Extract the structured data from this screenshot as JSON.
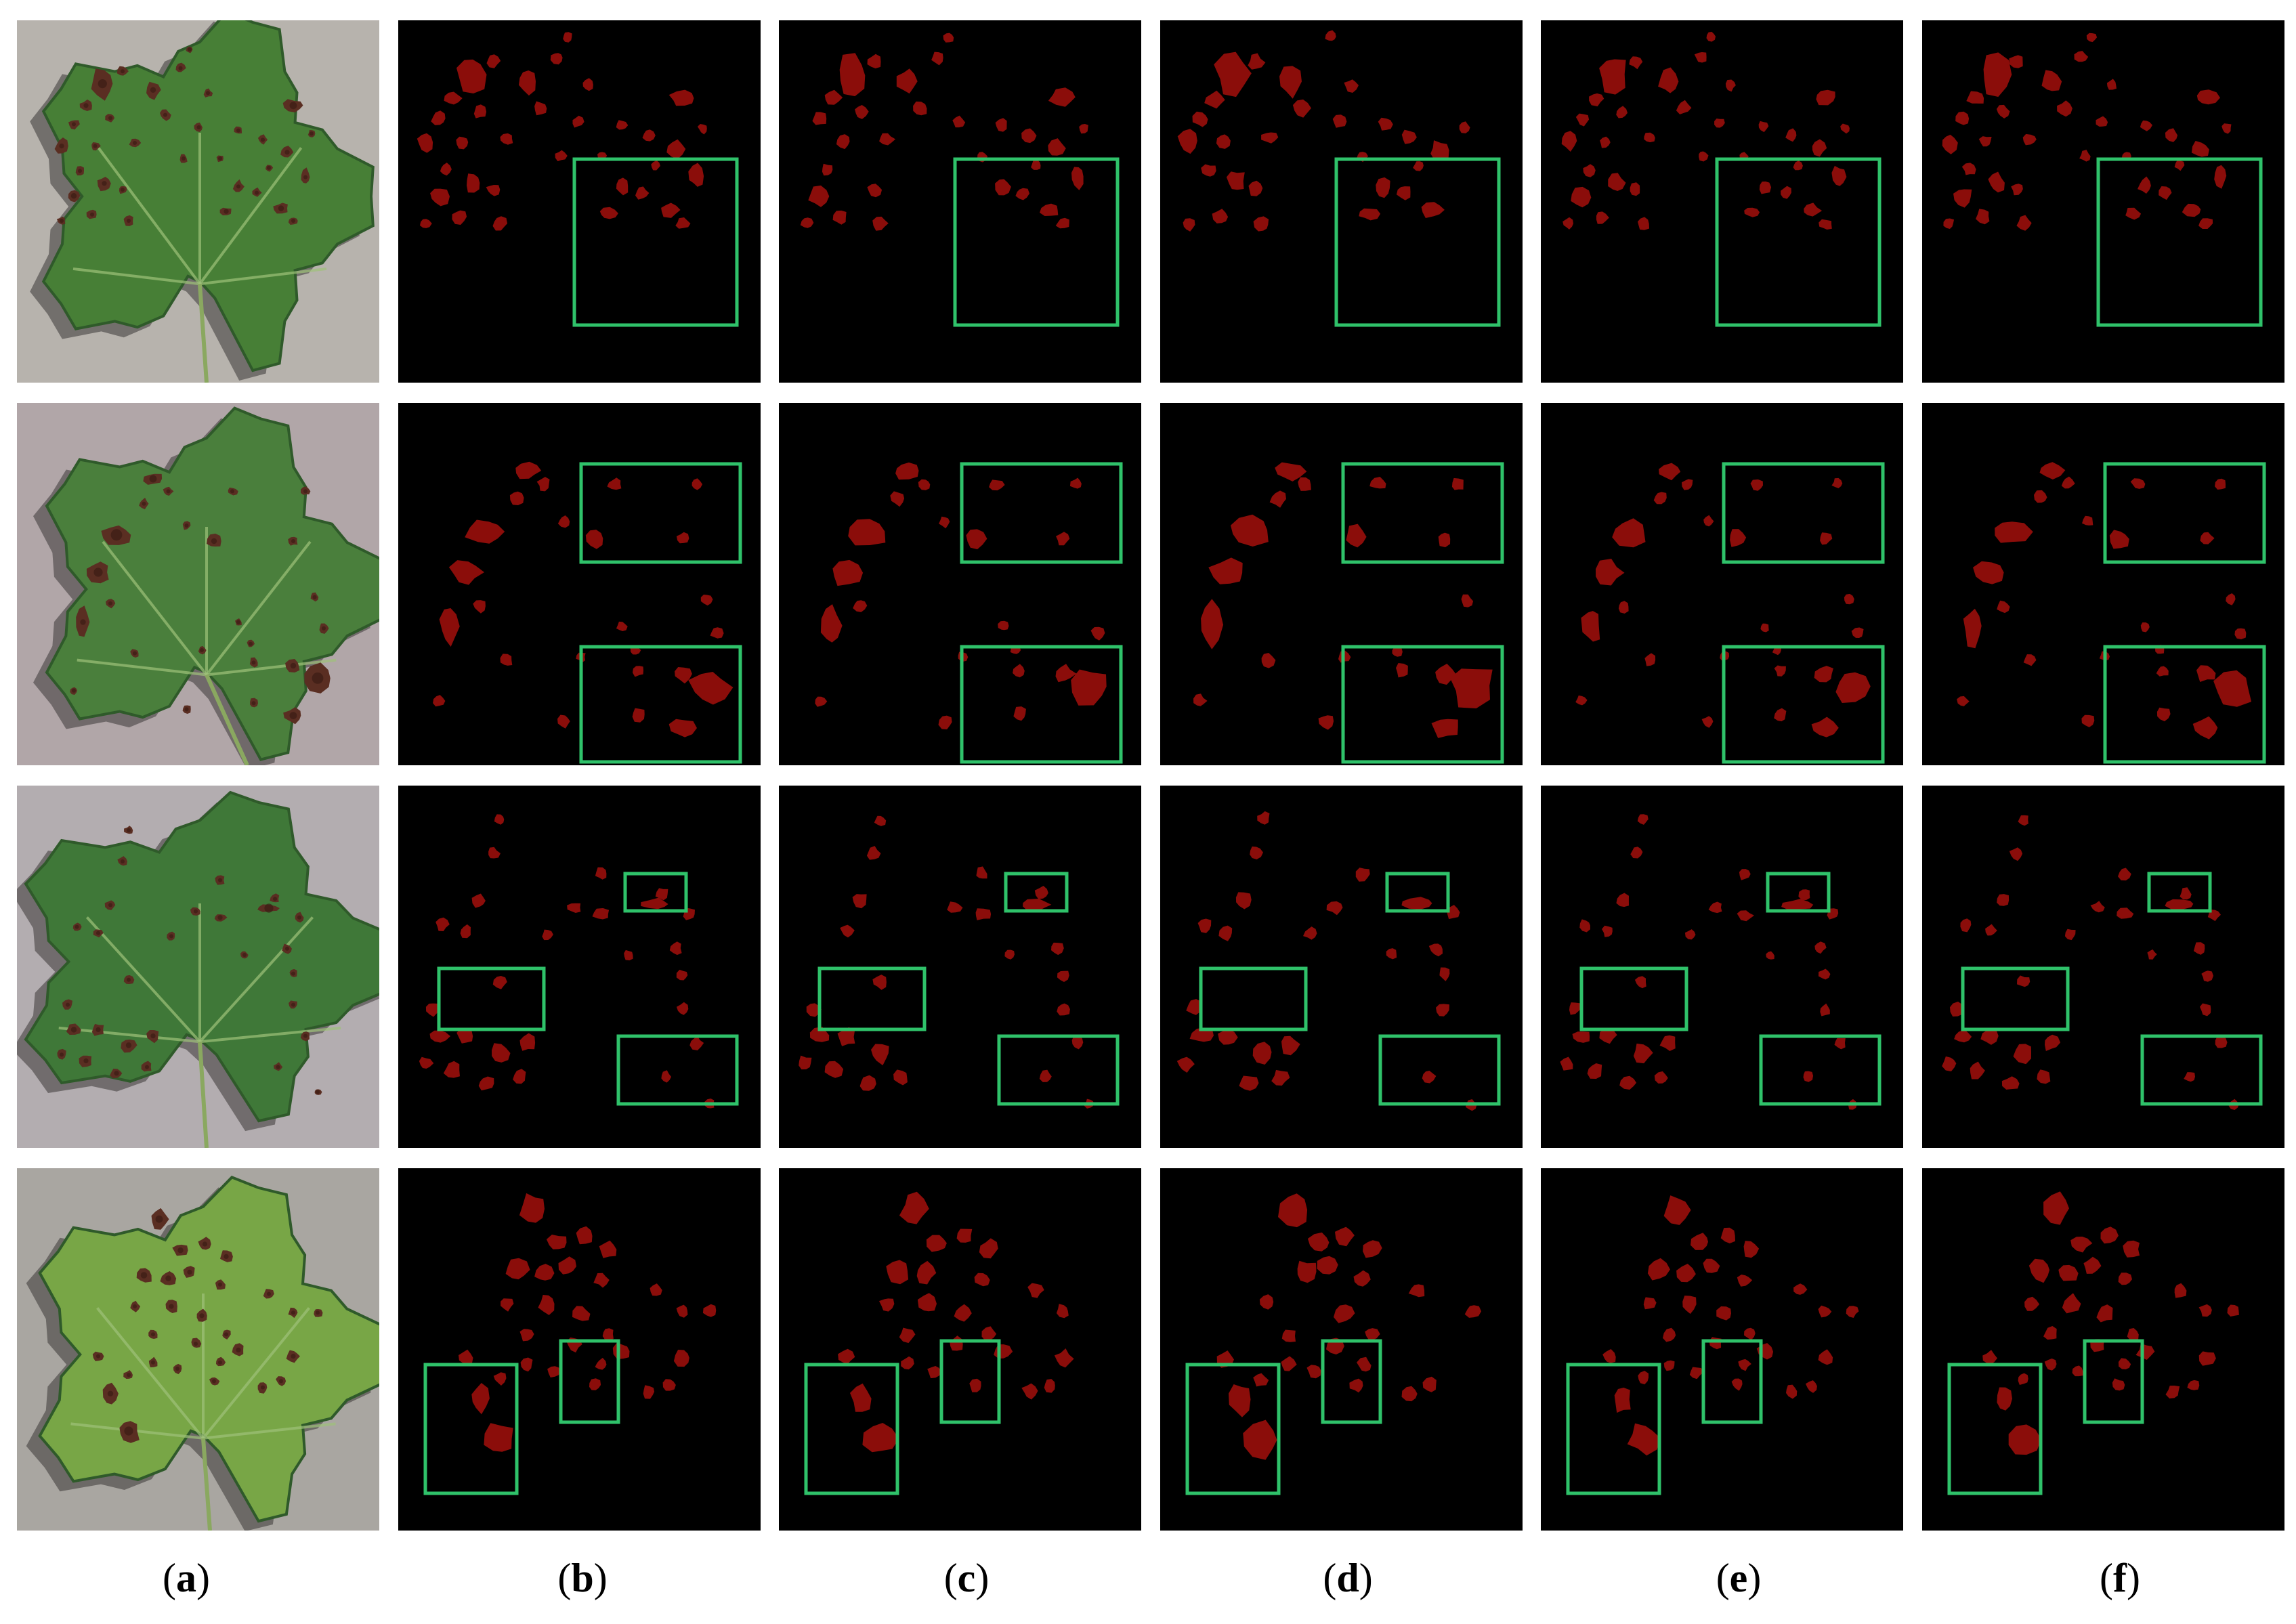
{
  "figure": {
    "columns": [
      {
        "id": "a",
        "label": "a",
        "content": "input-leaf-photo"
      },
      {
        "id": "b",
        "label": "b",
        "content": "segmentation-mask"
      },
      {
        "id": "c",
        "label": "c",
        "content": "segmentation-mask"
      },
      {
        "id": "d",
        "label": "d",
        "content": "segmentation-mask"
      },
      {
        "id": "e",
        "label": "e",
        "content": "segmentation-mask"
      },
      {
        "id": "f",
        "label": "f",
        "content": "segmentation-mask"
      }
    ],
    "rows": 4,
    "colors": {
      "mask_background": "#000000",
      "lesion": "#8b0d0a",
      "highlight_box": "#2fc26a",
      "background_photo_row1": "#b7b3ad",
      "background_photo_row2": "#b1a6a8",
      "background_photo_row3": "#b3adb0",
      "background_photo_row4": "#a9a6a1",
      "leaf_green": "#4f8a3a",
      "leaf_dark": "#2f5a2a",
      "lesion_brown": "#5a2e22"
    }
  }
}
